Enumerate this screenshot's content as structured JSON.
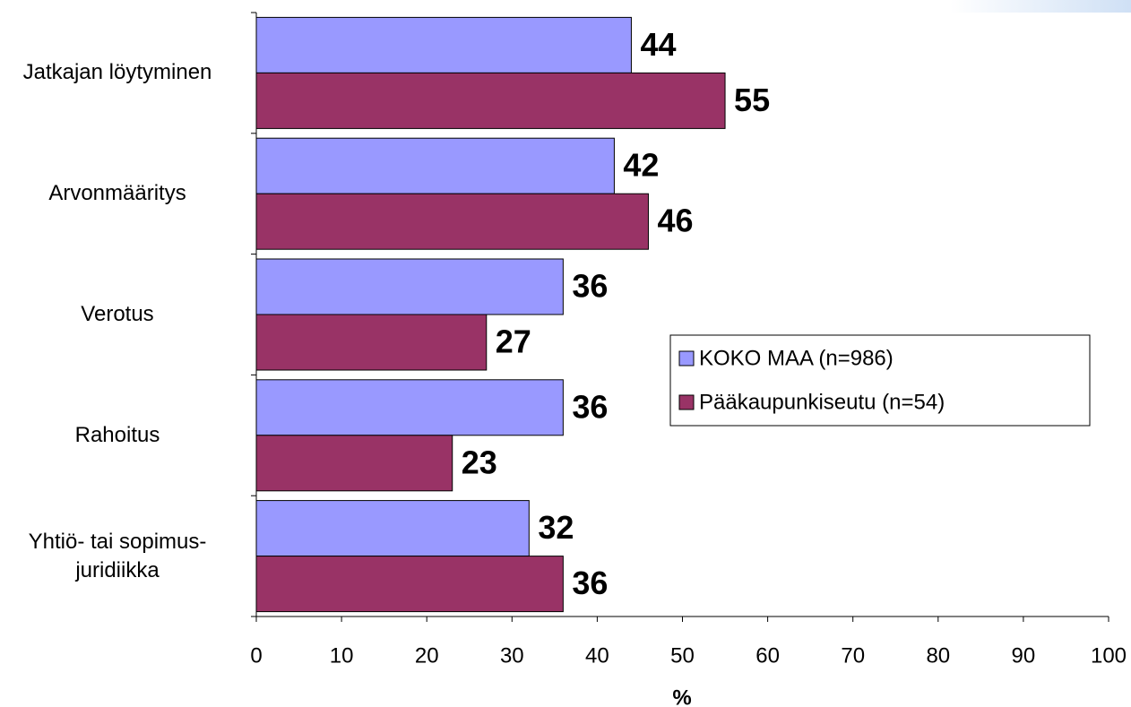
{
  "chart_data": {
    "type": "hbar",
    "categories": [
      "Jatkajan löytyminen",
      "Arvonmääritys",
      "Verotus",
      "Rahoitus",
      "Yhtiö- tai sopimus-\njuridiikka"
    ],
    "series": [
      {
        "name": "KOKO MAA (n=986)",
        "color": "#9999ff",
        "values": [
          44,
          42,
          36,
          36,
          32
        ]
      },
      {
        "name": "Pääkaupunkiseutu (n=54)",
        "color": "#993366",
        "values": [
          55,
          46,
          27,
          23,
          36
        ]
      }
    ],
    "xlabel": "%",
    "xlim": [
      0,
      100
    ],
    "xticks": [
      0,
      10,
      20,
      30,
      40,
      50,
      60,
      70,
      80,
      90,
      100
    ],
    "grid": false,
    "legend": "right"
  }
}
